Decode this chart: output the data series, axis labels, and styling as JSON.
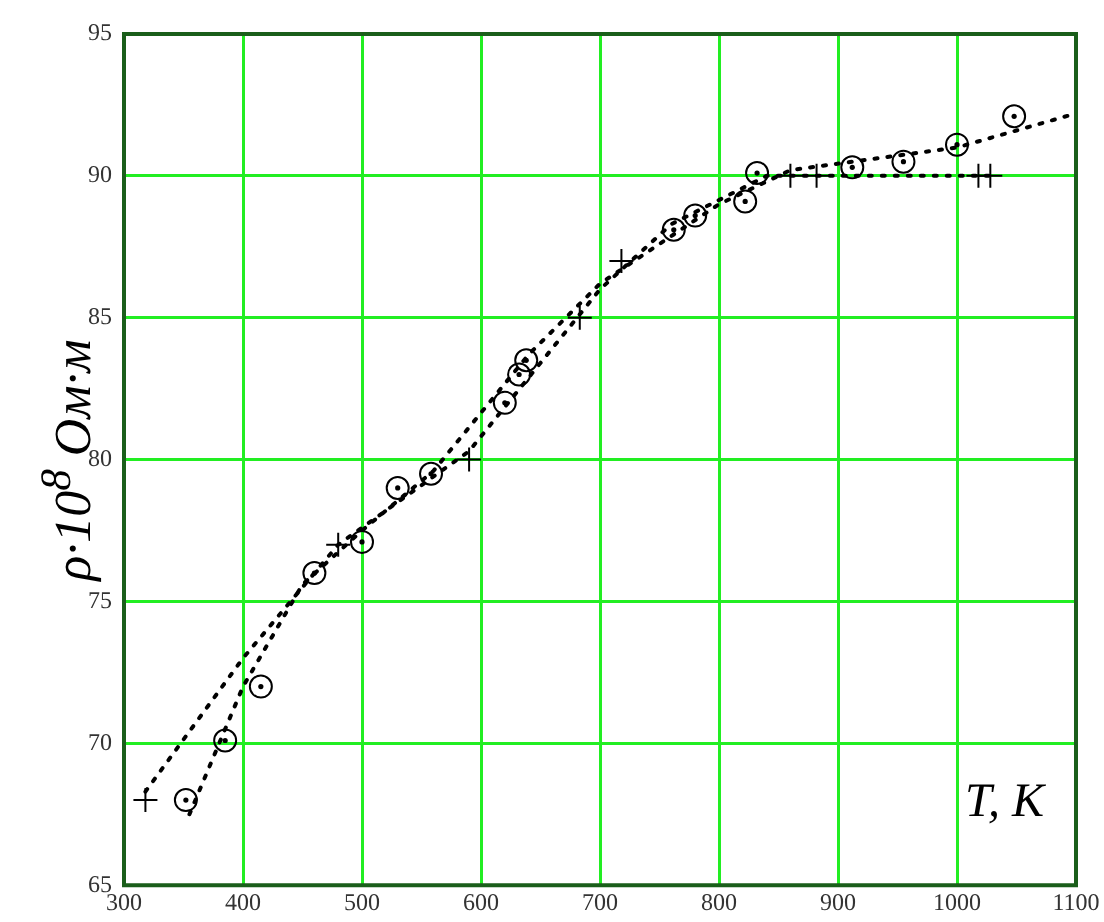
{
  "chart_data": {
    "type": "scatter",
    "ylabel": "ρ·10$^{8}$ Ом·м",
    "annotations": [
      "T, К"
    ],
    "xlim": [
      300,
      1100
    ],
    "xticks": [
      300,
      400,
      500,
      600,
      700,
      800,
      900,
      1000,
      1100
    ],
    "ylim": [
      65,
      95
    ],
    "yticks": [
      65,
      70,
      75,
      80,
      85,
      90,
      95
    ],
    "grid": true,
    "legend": false,
    "series": [
      {
        "color": "#000000",
        "marker": "circle",
        "x": [
          352,
          385,
          415,
          460,
          500,
          530,
          558,
          620,
          632,
          638,
          762,
          780,
          822,
          832,
          912,
          955,
          1000,
          1048
        ],
        "values": [
          68,
          70.1,
          72,
          76,
          77.1,
          79,
          79.5,
          82,
          83,
          83.5,
          88.1,
          88.6,
          89.1,
          90.1,
          90.3,
          90.5,
          91.1,
          92.1
        ]
      },
      {
        "color": "#000000",
        "marker": "cross",
        "x": [
          318,
          480,
          590,
          683,
          718,
          860,
          882,
          1018,
          1028
        ],
        "values": [
          68,
          77,
          80,
          85,
          87,
          90,
          90,
          90,
          90
        ]
      },
      {
        "type": "line",
        "color": "#000000",
        "marker": "none",
        "line_style": "dotted",
        "x": [
          318,
          400,
          480,
          590,
          700,
          760,
          840,
          1030
        ],
        "values": [
          68.3,
          73,
          77,
          80.3,
          86,
          88.3,
          90,
          90
        ]
      },
      {
        "type": "line",
        "color": "#000000",
        "marker": "none",
        "line_style": "dotted",
        "x": [
          355,
          400,
          450,
          500,
          560,
          640,
          700,
          800,
          860,
          1000,
          1100
        ],
        "values": [
          67.5,
          72,
          75.6,
          77.5,
          79.6,
          83.7,
          86.2,
          89,
          90.2,
          91,
          92.2
        ]
      }
    ]
  }
}
